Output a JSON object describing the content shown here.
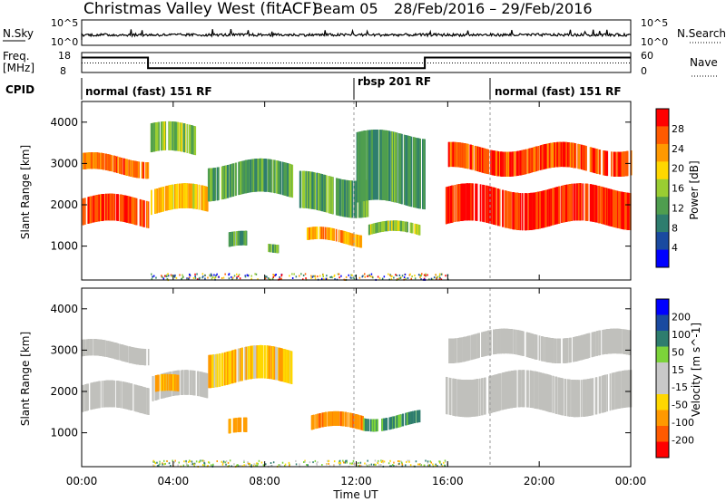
{
  "header": {
    "station": "Christmas Valley West (fitACF)",
    "beam": "Beam 05",
    "dates": "28/Feb/2016 – 29/Feb/2016"
  },
  "nsky_panel": {
    "left_label": "N.Sky",
    "left_ticks": [
      "10^5",
      "10^0"
    ],
    "right_ticks": [
      "10^5",
      "10^0"
    ],
    "right_label": "N.Search"
  },
  "freq_panel": {
    "left_label_1": "Freq.",
    "left_label_2": "[MHz]",
    "left_ticks": [
      "18",
      "8"
    ],
    "right_ticks": [
      "60",
      "0"
    ],
    "right_label": "Nave"
  },
  "cpid": {
    "label": "CPID",
    "modes": [
      "normal (fast) 151 RF",
      "rbsp 201 RF",
      "normal (fast) 151 RF"
    ]
  },
  "colors": {
    "power_scale": [
      "#0000ff",
      "#1a4aa0",
      "#2e7d6e",
      "#4f9e4f",
      "#9acd32",
      "#ffd700",
      "#ff9900",
      "#ff5a00",
      "#ff0000"
    ],
    "velocity_scale": [
      "#ff0000",
      "#ff5a00",
      "#ff9900",
      "#ffd700",
      "#c8c8c8",
      "#c8c8c8",
      "#7cd33a",
      "#2e7d6e",
      "#1a4aa0",
      "#0000ff"
    ],
    "ground_scatter": "#c0c0bc"
  },
  "chart_data": [
    {
      "type": "heatmap",
      "name": "power-panel",
      "ylabel": "Slant Range [km]",
      "yticks": [
        "1000",
        "2000",
        "3000",
        "4000"
      ],
      "ylim": [
        180,
        4500
      ],
      "colorbar_label": "Power [dB]",
      "colorbar_ticks": [
        "4",
        "8",
        "12",
        "16",
        "20",
        "24",
        "28"
      ],
      "colorbar_range": [
        0,
        30
      ],
      "echo_bands_hours_km": [
        {
          "t0": 0.0,
          "t1": 2.9,
          "r0": 1500,
          "r1": 2150,
          "level": 27
        },
        {
          "t0": 0.0,
          "t1": 2.9,
          "r0": 2750,
          "r1": 3150,
          "level": 25
        },
        {
          "t0": 3.0,
          "t1": 5.5,
          "r0": 1800,
          "r1": 2400,
          "level": 20
        },
        {
          "t0": 3.0,
          "t1": 5.0,
          "r0": 3200,
          "r1": 3900,
          "level": 14
        },
        {
          "t0": 5.5,
          "t1": 9.2,
          "r0": 2200,
          "r1": 3000,
          "level": 11
        },
        {
          "t0": 6.4,
          "t1": 7.2,
          "r0": 900,
          "r1": 1250,
          "level": 11
        },
        {
          "t0": 8.1,
          "t1": 8.6,
          "r0": 950,
          "r1": 1150,
          "level": 12
        },
        {
          "t0": 9.8,
          "t1": 12.2,
          "r0": 1050,
          "r1": 1350,
          "level": 22
        },
        {
          "t0": 9.5,
          "t1": 12.5,
          "r0": 1800,
          "r1": 2700,
          "level": 12
        },
        {
          "t0": 12.5,
          "t1": 14.8,
          "r0": 1250,
          "r1": 1500,
          "level": 14
        },
        {
          "t0": 12.0,
          "t1": 15.0,
          "r0": 2000,
          "r1": 3700,
          "level": 10
        },
        {
          "t0": 15.9,
          "t1": 24.0,
          "r0": 1500,
          "r1": 2400,
          "level": 29
        },
        {
          "t0": 16.0,
          "t1": 24.0,
          "r0": 2800,
          "r1": 3400,
          "level": 27
        }
      ]
    },
    {
      "type": "heatmap",
      "name": "velocity-panel",
      "ylabel": "Slant Range [km]",
      "yticks": [
        "1000",
        "2000",
        "3000",
        "4000"
      ],
      "ylim": [
        180,
        4500
      ],
      "colorbar_label": "Velocity [m s^-1]",
      "colorbar_ticks": [
        "-200",
        "-100",
        "-50",
        "-15",
        "15",
        "50",
        "100",
        "200"
      ],
      "colorbar_range": [
        -250,
        250
      ],
      "echo_bands_hours_km": [
        {
          "t0": 0.0,
          "t1": 2.9,
          "r0": 1500,
          "r1": 2150,
          "kind": "ground"
        },
        {
          "t0": 0.0,
          "t1": 2.9,
          "r0": 2750,
          "r1": 3150,
          "kind": "ground"
        },
        {
          "t0": 3.0,
          "t1": 5.5,
          "r0": 1800,
          "r1": 2400,
          "kind": "ground"
        },
        {
          "t0": 3.2,
          "t1": 4.2,
          "r0": 1900,
          "r1": 2300,
          "vel": -60
        },
        {
          "t0": 5.5,
          "t1": 9.2,
          "r0": 2200,
          "r1": 3000,
          "vel": -40
        },
        {
          "t0": 6.4,
          "t1": 7.2,
          "r0": 900,
          "r1": 1250,
          "vel": -70
        },
        {
          "t0": 10.0,
          "t1": 12.3,
          "r0": 1050,
          "r1": 1400,
          "vel": -80
        },
        {
          "t0": 12.3,
          "t1": 14.8,
          "r0": 1150,
          "r1": 1450,
          "vel": 60
        },
        {
          "t0": 15.9,
          "t1": 24.0,
          "r0": 1500,
          "r1": 2400,
          "kind": "ground"
        },
        {
          "t0": 16.0,
          "t1": 24.0,
          "r0": 2800,
          "r1": 3400,
          "kind": "ground"
        }
      ]
    },
    {
      "type": "line",
      "name": "frequency-panel",
      "ylim": [
        8,
        18
      ],
      "x_hours": [
        0,
        2.9,
        2.9,
        15.0,
        15.0,
        24
      ],
      "freq_mhz": [
        15.5,
        15.5,
        10.2,
        10.2,
        15.5,
        15.5
      ],
      "nave_dotted": 12.8
    }
  ],
  "xaxis": {
    "label": "Time UT",
    "ticks": [
      "00:00",
      "04:00",
      "08:00",
      "12:00",
      "16:00",
      "20:00",
      "00:00"
    ]
  }
}
